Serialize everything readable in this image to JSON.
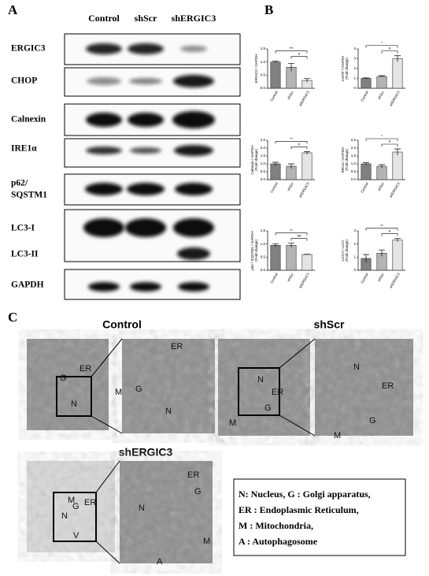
{
  "panel_a": {
    "label": "A",
    "lanes": [
      "Control",
      "shScr",
      "shERGIC3"
    ],
    "rows": [
      "ERGIC3",
      "CHOP",
      "Calnexin",
      "IRE1α",
      "p62/",
      "SQSTM1",
      "LC3-I",
      "LC3-II",
      "GAPDH"
    ]
  },
  "panel_b": {
    "label": "B"
  },
  "chart_data": [
    {
      "type": "bar",
      "ylabel": [
        "ERGIC3 / GAPDH"
      ],
      "categories": [
        "Control",
        "shScr",
        "shERGIC3"
      ],
      "values": [
        1.0,
        0.8,
        0.3
      ],
      "errors": [
        0.03,
        0.15,
        0.07
      ],
      "colors": [
        "#808080",
        "#b4b4b4",
        "#e4e4e4"
      ],
      "ylim": [
        0,
        1.5
      ],
      "yticks": [
        {
          "value": 0,
          "label": "0.0"
        },
        {
          "value": 0.5,
          "label": "0.5"
        },
        {
          "value": 1,
          "label": "1.0"
        },
        {
          "value": 1.5,
          "label": "1.5"
        }
      ],
      "annotations": [
        "***",
        "#"
      ]
    },
    {
      "type": "bar",
      "ylabel": [
        "CHOP / GAPDH",
        "(Fold change)"
      ],
      "categories": [
        "Control",
        "shScr",
        "shERGIC3"
      ],
      "values": [
        1.0,
        1.2,
        3.0
      ],
      "errors": [
        0.05,
        0.08,
        0.3
      ],
      "colors": [
        "#808080",
        "#b4b4b4",
        "#e4e4e4"
      ],
      "ylim": [
        0,
        4
      ],
      "yticks": [
        0,
        1,
        2,
        3,
        4
      ],
      "annotations": [
        "*",
        "#"
      ]
    },
    {
      "type": "bar",
      "ylabel": [
        "Calnexin / GAPDH",
        "(Fold change)"
      ],
      "categories": [
        "Control",
        "shScr",
        "shERGIC3"
      ],
      "values": [
        1.0,
        0.85,
        1.7
      ],
      "errors": [
        0.1,
        0.15,
        0.08
      ],
      "colors": [
        "#808080",
        "#b4b4b4",
        "#e4e4e4"
      ],
      "ylim": [
        0,
        2.5
      ],
      "yticks": [
        {
          "value": 0,
          "label": "0.0"
        },
        {
          "value": 0.5,
          "label": "0.5"
        },
        {
          "value": 1,
          "label": "1.0"
        },
        {
          "value": 1.5,
          "label": "1.5"
        },
        {
          "value": 2,
          "label": "2.0"
        },
        {
          "value": 2.5,
          "label": "2.5"
        }
      ],
      "annotations": [
        "**",
        "#"
      ]
    },
    {
      "type": "bar",
      "ylabel": [
        "IRE1α / GAPDH",
        "(Fold change)"
      ],
      "categories": [
        "Control",
        "shScr",
        "shERGIC3"
      ],
      "values": [
        1.0,
        0.85,
        1.75
      ],
      "errors": [
        0.07,
        0.1,
        0.2
      ],
      "colors": [
        "#808080",
        "#b4b4b4",
        "#e4e4e4"
      ],
      "ylim": [
        0,
        2.5
      ],
      "yticks": [
        {
          "value": 0,
          "label": "0.0"
        },
        {
          "value": 0.5,
          "label": "0.5"
        },
        {
          "value": 1,
          "label": "1.0"
        },
        {
          "value": 1.5,
          "label": "1.5"
        },
        {
          "value": 2,
          "label": "2.0"
        },
        {
          "value": 2.5,
          "label": "2.5"
        }
      ],
      "annotations": [
        "*",
        "#"
      ]
    },
    {
      "type": "bar",
      "ylabel": [
        "p62 / SQSTM1 / GAPDH",
        "(Fold change)"
      ],
      "categories": [
        "Control",
        "shScr",
        "shERGIC3"
      ],
      "values": [
        0.95,
        0.95,
        0.6
      ],
      "errors": [
        0.06,
        0.08,
        0.01
      ],
      "colors": [
        "#808080",
        "#b4b4b4",
        "#e4e4e4"
      ],
      "ylim": [
        0,
        1.5
      ],
      "yticks": [
        {
          "value": 0,
          "label": "0.0"
        },
        {
          "value": 0.5,
          "label": "0.5"
        },
        {
          "value": 1,
          "label": "1.0"
        },
        {
          "value": 1.5,
          "label": "1.5"
        }
      ],
      "annotations": [
        "**",
        "##"
      ]
    },
    {
      "type": "bar",
      "ylabel": [
        "LC3-II / LC3-I",
        "(Fold change)"
      ],
      "categories": [
        "Control",
        "shScr",
        "shERGIC3"
      ],
      "values": [
        0.9,
        1.3,
        2.3
      ],
      "errors": [
        0.3,
        0.25,
        0.12
      ],
      "colors": [
        "#808080",
        "#b4b4b4",
        "#e4e4e4"
      ],
      "ylim": [
        0,
        3
      ],
      "yticks": [
        0,
        1,
        2,
        3
      ],
      "annotations": [
        "**",
        "#"
      ]
    }
  ],
  "panel_c": {
    "label": "C",
    "groups": [
      {
        "title": "Control",
        "overview_labels": [
          "ER",
          "G",
          "M",
          "N"
        ],
        "zoom_labels": [
          "ER",
          "G",
          "N"
        ]
      },
      {
        "title": "shScr",
        "overview_labels": [
          "N",
          "ER",
          "G",
          "M"
        ],
        "zoom_labels": [
          "N",
          "ER",
          "G",
          "M"
        ]
      },
      {
        "title": "shERGIC3",
        "overview_labels": [
          "M",
          "ER",
          "G",
          "N",
          "V"
        ],
        "zoom_labels": [
          "ER",
          "G",
          "N",
          "M",
          "A"
        ]
      }
    ],
    "legend": [
      "N: Nucleus,  G : Golgi apparatus,",
      "ER : Endoplasmic Reticulum,",
      "M : Mitochondria,",
      "A : Autophagosome"
    ]
  }
}
